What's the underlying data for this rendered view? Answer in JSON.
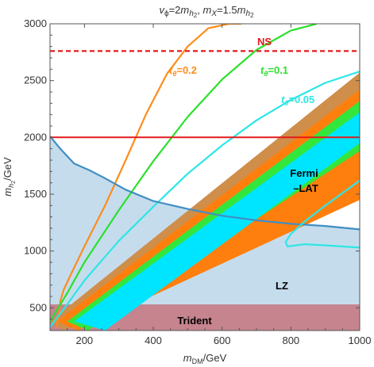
{
  "chart_data": {
    "type": "line",
    "title": "v_ϕ=2m_h2, m_X=1.5m_h2",
    "title_parts": {
      "v": "v",
      "v_sub": "ϕ",
      "v_eq": "=2",
      "m1": "m",
      "m1_sub": "h",
      "m1_subsub": "2",
      "sep": ", ",
      "m2": "m",
      "m2_sub": "X",
      "m2_eq": "=1.5",
      "m3": "m",
      "m3_sub": "h",
      "m3_subsub": "2"
    },
    "xlabel": {
      "main": "m",
      "sub": "DM",
      "unit": "/GeV"
    },
    "ylabel": {
      "main": "m",
      "sub": "h",
      "subsub": "2",
      "unit": "/GeV"
    },
    "xlim": [
      100,
      1000
    ],
    "ylim": [
      300,
      3000
    ],
    "xticks": [
      200,
      400,
      600,
      800,
      1000
    ],
    "yticks": [
      500,
      1000,
      1500,
      2000,
      2500,
      3000
    ],
    "xtick_labels": [
      "200",
      "400",
      "600",
      "800",
      "1000"
    ],
    "ytick_labels": [
      "500",
      "1000",
      "1500",
      "2000",
      "2500",
      "3000"
    ],
    "grid": false,
    "colors": {
      "lz_fill": "#c5dced",
      "lz_line": "#3f8ec4",
      "trident": "#c5848e",
      "ns": "#e41a1c",
      "red_line": "#e41a1c",
      "band_brown": "#cf8e4a",
      "band_orange": "#ff7f0e",
      "band_green": "#33e63c",
      "band_cyan": "#00e5ff",
      "te02": "#ff8c1a",
      "te01": "#2be02b",
      "te005": "#2ee6e6",
      "fermi_line": "#2ee6e6"
    },
    "series": [
      {
        "name": "t_θ=0.2",
        "label_prefix": "t",
        "label_sub": "θ",
        "label_value": "=0.2",
        "x": [
          118,
          125,
          130,
          140,
          160,
          200,
          260,
          320,
          380,
          440,
          500,
          560,
          620,
          656
        ],
        "y": [
          330,
          420,
          560,
          660,
          790,
          1040,
          1400,
          1800,
          2210,
          2560,
          2800,
          2960,
          3000,
          3000
        ]
      },
      {
        "name": "t_θ=0.1",
        "label_prefix": "t",
        "label_sub": "θ",
        "label_value": "=0.1",
        "x": [
          100,
          150,
          200,
          300,
          400,
          500,
          600,
          700,
          800,
          875
        ],
        "y": [
          380,
          630,
          900,
          1360,
          1790,
          2180,
          2510,
          2770,
          2940,
          3000
        ]
      },
      {
        "name": "t_θ=0.05",
        "label_prefix": "t",
        "label_sub": "θ",
        "label_value": "=0.05",
        "x": [
          100,
          150,
          200,
          300,
          400,
          500,
          600,
          700,
          800,
          900,
          1000
        ],
        "y": [
          330,
          530,
          740,
          1090,
          1390,
          1680,
          1930,
          2150,
          2330,
          2480,
          2580
        ]
      },
      {
        "name": "LZ",
        "x": [
          100,
          130,
          170,
          215,
          260,
          320,
          400,
          500,
          600,
          700,
          800,
          900,
          1000
        ],
        "y": [
          2010,
          1900,
          1770,
          1710,
          1640,
          1540,
          1440,
          1370,
          1310,
          1270,
          1240,
          1220,
          1190
        ]
      },
      {
        "name": "NS",
        "x": [
          100,
          1000
        ],
        "y": [
          2760,
          2760
        ]
      },
      {
        "name": "m_h2=2000",
        "x": [
          100,
          1000
        ],
        "y": [
          2000,
          2000
        ]
      }
    ],
    "bands": [
      {
        "name": "brown",
        "lower": [
          [
            140,
            300
          ],
          [
            1000,
            1600
          ]
        ],
        "upper": [
          [
            100,
            380
          ],
          [
            1000,
            2570
          ]
        ]
      },
      {
        "name": "orange",
        "lower": [
          [
            180,
            300
          ],
          [
            1000,
            1450
          ]
        ],
        "upper": [
          [
            120,
            380
          ],
          [
            1000,
            2420
          ]
        ]
      },
      {
        "name": "green",
        "lower": [
          [
            210,
            300
          ],
          [
            1000,
            1880
          ]
        ],
        "upper": [
          [
            150,
            380
          ],
          [
            1000,
            2320
          ]
        ]
      },
      {
        "name": "cyan",
        "lower": [
          [
            260,
            300
          ],
          [
            1000,
            1950
          ]
        ],
        "upper": [
          [
            170,
            380
          ],
          [
            1000,
            2220
          ]
        ]
      }
    ],
    "fermi_contour": {
      "x": [
        1000,
        900,
        840,
        800,
        785,
        790,
        840,
        900,
        1000
      ],
      "y": [
        1620,
        1400,
        1260,
        1150,
        1080,
        1040,
        1060,
        1050,
        1030
      ]
    },
    "trident_region": {
      "ymax": 530
    },
    "annotations": [
      {
        "key": "ns",
        "text": "NS"
      },
      {
        "key": "fermi_1",
        "text": "Fermi"
      },
      {
        "key": "fermi_2",
        "text": "–LAT"
      },
      {
        "key": "lz",
        "text": "LZ"
      },
      {
        "key": "trident",
        "text": "Trident"
      }
    ]
  }
}
